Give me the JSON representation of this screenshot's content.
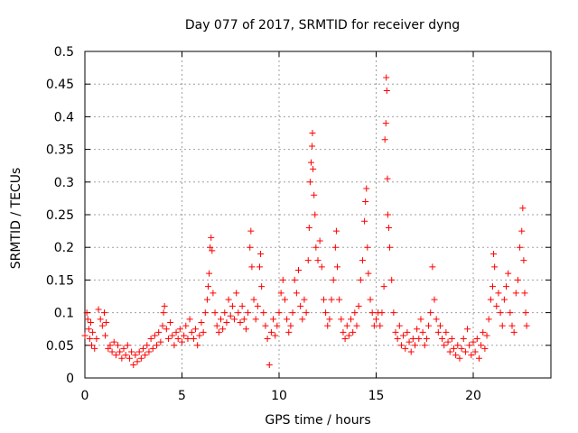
{
  "chart_data": {
    "type": "scatter",
    "title": "Day 077 of 2017, SRMTID for receiver dyng",
    "xlabel": "GPS time / hours",
    "ylabel": "SRMTID / TECUs",
    "xlim": [
      0,
      24
    ],
    "ylim": [
      0,
      0.5
    ],
    "xticks": [
      0,
      5,
      10,
      15,
      20
    ],
    "xtick_labels": [
      "0",
      "5",
      "10",
      "15",
      "20"
    ],
    "yticks": [
      0,
      0.05,
      0.1,
      0.15,
      0.2,
      0.25,
      0.3,
      0.35,
      0.4,
      0.45,
      0.5
    ],
    "ytick_labels": [
      "0",
      "0.05",
      "0.1",
      "0.15",
      "0.2",
      "0.25",
      "0.3",
      "0.35",
      "0.4",
      "0.45",
      "0.5"
    ],
    "grid": true,
    "marker": "+",
    "color": "#ff0000",
    "series": [
      {
        "name": "SRMTID",
        "points": [
          [
            0.0,
            0.065
          ],
          [
            0.1,
            0.1
          ],
          [
            0.15,
            0.09
          ],
          [
            0.2,
            0.075
          ],
          [
            0.25,
            0.06
          ],
          [
            0.3,
            0.085
          ],
          [
            0.35,
            0.05
          ],
          [
            0.4,
            0.07
          ],
          [
            0.5,
            0.045
          ],
          [
            0.6,
            0.06
          ],
          [
            0.7,
            0.105
          ],
          [
            0.8,
            0.09
          ],
          [
            0.9,
            0.08
          ],
          [
            1.0,
            0.1
          ],
          [
            1.05,
            0.065
          ],
          [
            1.1,
            0.085
          ],
          [
            1.2,
            0.045
          ],
          [
            1.3,
            0.05
          ],
          [
            1.4,
            0.04
          ],
          [
            1.5,
            0.055
          ],
          [
            1.6,
            0.035
          ],
          [
            1.7,
            0.05
          ],
          [
            1.8,
            0.04
          ],
          [
            1.9,
            0.03
          ],
          [
            2.0,
            0.045
          ],
          [
            2.1,
            0.035
          ],
          [
            2.2,
            0.05
          ],
          [
            2.3,
            0.03
          ],
          [
            2.4,
            0.04
          ],
          [
            2.5,
            0.02
          ],
          [
            2.6,
            0.035
          ],
          [
            2.7,
            0.025
          ],
          [
            2.8,
            0.04
          ],
          [
            2.9,
            0.03
          ],
          [
            3.0,
            0.045
          ],
          [
            3.1,
            0.035
          ],
          [
            3.2,
            0.05
          ],
          [
            3.3,
            0.04
          ],
          [
            3.4,
            0.06
          ],
          [
            3.5,
            0.045
          ],
          [
            3.6,
            0.065
          ],
          [
            3.7,
            0.05
          ],
          [
            3.8,
            0.07
          ],
          [
            3.9,
            0.055
          ],
          [
            4.0,
            0.08
          ],
          [
            4.05,
            0.1
          ],
          [
            4.1,
            0.11
          ],
          [
            4.2,
            0.075
          ],
          [
            4.3,
            0.06
          ],
          [
            4.4,
            0.085
          ],
          [
            4.5,
            0.065
          ],
          [
            4.6,
            0.05
          ],
          [
            4.7,
            0.07
          ],
          [
            4.8,
            0.06
          ],
          [
            4.9,
            0.075
          ],
          [
            5.0,
            0.055
          ],
          [
            5.1,
            0.065
          ],
          [
            5.2,
            0.08
          ],
          [
            5.3,
            0.06
          ],
          [
            5.4,
            0.09
          ],
          [
            5.5,
            0.07
          ],
          [
            5.6,
            0.06
          ],
          [
            5.7,
            0.075
          ],
          [
            5.8,
            0.05
          ],
          [
            5.9,
            0.065
          ],
          [
            6.0,
            0.085
          ],
          [
            6.1,
            0.07
          ],
          [
            6.2,
            0.1
          ],
          [
            6.3,
            0.12
          ],
          [
            6.35,
            0.14
          ],
          [
            6.4,
            0.16
          ],
          [
            6.45,
            0.2
          ],
          [
            6.5,
            0.215
          ],
          [
            6.55,
            0.195
          ],
          [
            6.6,
            0.13
          ],
          [
            6.7,
            0.1
          ],
          [
            6.8,
            0.08
          ],
          [
            6.9,
            0.07
          ],
          [
            7.0,
            0.09
          ],
          [
            7.1,
            0.075
          ],
          [
            7.2,
            0.1
          ],
          [
            7.3,
            0.085
          ],
          [
            7.4,
            0.12
          ],
          [
            7.5,
            0.095
          ],
          [
            7.6,
            0.11
          ],
          [
            7.7,
            0.09
          ],
          [
            7.8,
            0.13
          ],
          [
            7.9,
            0.1
          ],
          [
            8.0,
            0.085
          ],
          [
            8.1,
            0.11
          ],
          [
            8.2,
            0.09
          ],
          [
            8.3,
            0.075
          ],
          [
            8.4,
            0.1
          ],
          [
            8.5,
            0.2
          ],
          [
            8.55,
            0.225
          ],
          [
            8.6,
            0.17
          ],
          [
            8.7,
            0.12
          ],
          [
            8.8,
            0.09
          ],
          [
            8.9,
            0.11
          ],
          [
            9.0,
            0.17
          ],
          [
            9.05,
            0.19
          ],
          [
            9.1,
            0.14
          ],
          [
            9.2,
            0.1
          ],
          [
            9.3,
            0.08
          ],
          [
            9.4,
            0.06
          ],
          [
            9.5,
            0.02
          ],
          [
            9.6,
            0.07
          ],
          [
            9.7,
            0.09
          ],
          [
            9.8,
            0.065
          ],
          [
            9.9,
            0.08
          ],
          [
            10.0,
            0.1
          ],
          [
            10.1,
            0.13
          ],
          [
            10.2,
            0.15
          ],
          [
            10.3,
            0.12
          ],
          [
            10.4,
            0.09
          ],
          [
            10.5,
            0.07
          ],
          [
            10.6,
            0.08
          ],
          [
            10.7,
            0.1
          ],
          [
            10.8,
            0.15
          ],
          [
            10.9,
            0.13
          ],
          [
            11.0,
            0.165
          ],
          [
            11.1,
            0.11
          ],
          [
            11.2,
            0.09
          ],
          [
            11.3,
            0.12
          ],
          [
            11.4,
            0.1
          ],
          [
            11.5,
            0.18
          ],
          [
            11.55,
            0.23
          ],
          [
            11.6,
            0.3
          ],
          [
            11.65,
            0.33
          ],
          [
            11.7,
            0.355
          ],
          [
            11.72,
            0.375
          ],
          [
            11.75,
            0.32
          ],
          [
            11.8,
            0.28
          ],
          [
            11.85,
            0.25
          ],
          [
            11.9,
            0.2
          ],
          [
            12.0,
            0.18
          ],
          [
            12.1,
            0.21
          ],
          [
            12.2,
            0.17
          ],
          [
            12.3,
            0.12
          ],
          [
            12.4,
            0.1
          ],
          [
            12.5,
            0.08
          ],
          [
            12.6,
            0.09
          ],
          [
            12.7,
            0.12
          ],
          [
            12.8,
            0.15
          ],
          [
            12.9,
            0.2
          ],
          [
            12.95,
            0.225
          ],
          [
            13.0,
            0.17
          ],
          [
            13.1,
            0.12
          ],
          [
            13.2,
            0.09
          ],
          [
            13.3,
            0.07
          ],
          [
            13.4,
            0.06
          ],
          [
            13.5,
            0.08
          ],
          [
            13.6,
            0.065
          ],
          [
            13.7,
            0.09
          ],
          [
            13.8,
            0.07
          ],
          [
            13.9,
            0.1
          ],
          [
            14.0,
            0.08
          ],
          [
            14.1,
            0.11
          ],
          [
            14.2,
            0.15
          ],
          [
            14.3,
            0.18
          ],
          [
            14.4,
            0.24
          ],
          [
            14.45,
            0.27
          ],
          [
            14.5,
            0.29
          ],
          [
            14.55,
            0.2
          ],
          [
            14.6,
            0.16
          ],
          [
            14.7,
            0.12
          ],
          [
            14.8,
            0.1
          ],
          [
            14.9,
            0.08
          ],
          [
            15.0,
            0.09
          ],
          [
            15.1,
            0.1
          ],
          [
            15.2,
            0.08
          ],
          [
            15.3,
            0.1
          ],
          [
            15.4,
            0.14
          ],
          [
            15.45,
            0.365
          ],
          [
            15.5,
            0.39
          ],
          [
            15.52,
            0.46
          ],
          [
            15.55,
            0.44
          ],
          [
            15.58,
            0.305
          ],
          [
            15.6,
            0.25
          ],
          [
            15.65,
            0.23
          ],
          [
            15.7,
            0.2
          ],
          [
            15.8,
            0.15
          ],
          [
            15.9,
            0.1
          ],
          [
            16.0,
            0.07
          ],
          [
            16.1,
            0.06
          ],
          [
            16.2,
            0.08
          ],
          [
            16.3,
            0.05
          ],
          [
            16.4,
            0.065
          ],
          [
            16.5,
            0.045
          ],
          [
            16.6,
            0.07
          ],
          [
            16.7,
            0.055
          ],
          [
            16.8,
            0.04
          ],
          [
            16.9,
            0.06
          ],
          [
            17.0,
            0.05
          ],
          [
            17.1,
            0.075
          ],
          [
            17.2,
            0.06
          ],
          [
            17.3,
            0.09
          ],
          [
            17.4,
            0.07
          ],
          [
            17.5,
            0.05
          ],
          [
            17.6,
            0.06
          ],
          [
            17.7,
            0.08
          ],
          [
            17.8,
            0.1
          ],
          [
            17.9,
            0.17
          ],
          [
            18.0,
            0.12
          ],
          [
            18.1,
            0.09
          ],
          [
            18.2,
            0.07
          ],
          [
            18.3,
            0.08
          ],
          [
            18.4,
            0.06
          ],
          [
            18.5,
            0.05
          ],
          [
            18.6,
            0.07
          ],
          [
            18.7,
            0.055
          ],
          [
            18.8,
            0.04
          ],
          [
            18.9,
            0.06
          ],
          [
            19.0,
            0.045
          ],
          [
            19.1,
            0.035
          ],
          [
            19.2,
            0.05
          ],
          [
            19.3,
            0.03
          ],
          [
            19.4,
            0.045
          ],
          [
            19.5,
            0.06
          ],
          [
            19.6,
            0.04
          ],
          [
            19.7,
            0.075
          ],
          [
            19.8,
            0.05
          ],
          [
            19.9,
            0.035
          ],
          [
            20.0,
            0.055
          ],
          [
            20.1,
            0.04
          ],
          [
            20.2,
            0.06
          ],
          [
            20.3,
            0.03
          ],
          [
            20.4,
            0.05
          ],
          [
            20.5,
            0.07
          ],
          [
            20.6,
            0.045
          ],
          [
            20.7,
            0.065
          ],
          [
            20.8,
            0.09
          ],
          [
            20.9,
            0.12
          ],
          [
            21.0,
            0.14
          ],
          [
            21.05,
            0.19
          ],
          [
            21.1,
            0.17
          ],
          [
            21.2,
            0.11
          ],
          [
            21.3,
            0.13
          ],
          [
            21.4,
            0.1
          ],
          [
            21.5,
            0.08
          ],
          [
            21.6,
            0.12
          ],
          [
            21.7,
            0.14
          ],
          [
            21.8,
            0.16
          ],
          [
            21.9,
            0.1
          ],
          [
            22.0,
            0.08
          ],
          [
            22.1,
            0.07
          ],
          [
            22.2,
            0.13
          ],
          [
            22.3,
            0.15
          ],
          [
            22.4,
            0.2
          ],
          [
            22.5,
            0.225
          ],
          [
            22.55,
            0.26
          ],
          [
            22.6,
            0.18
          ],
          [
            22.65,
            0.13
          ],
          [
            22.7,
            0.1
          ],
          [
            22.75,
            0.08
          ]
        ]
      }
    ]
  }
}
